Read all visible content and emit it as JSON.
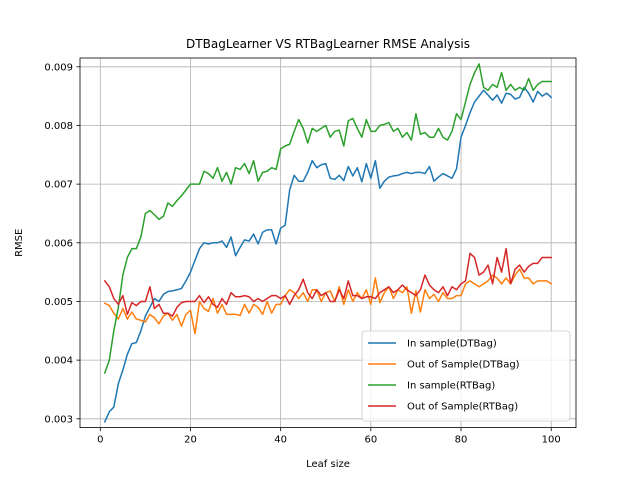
{
  "chart_data": {
    "type": "line",
    "title": "DTBagLearner VS RTBagLearner RMSE Analysis",
    "xlabel": "Leaf size",
    "ylabel": "RMSE",
    "xlim": [
      -4.5,
      105.5
    ],
    "ylim": [
      0.00285,
      0.00915
    ],
    "xticks": [
      0,
      20,
      40,
      60,
      80,
      100
    ],
    "yticks": [
      0.003,
      0.004,
      0.005,
      0.006,
      0.007,
      0.008,
      0.009
    ],
    "ytick_labels": [
      "0.003",
      "0.004",
      "0.005",
      "0.006",
      "0.007",
      "0.008",
      "0.009"
    ],
    "grid": true,
    "legend_position": "lower-right",
    "x_start": 1,
    "x_end": 100,
    "series": [
      {
        "name": "In sample(DTBag)",
        "color": "#1f77b4",
        "values": [
          0.00295,
          0.00312,
          0.0032,
          0.0036,
          0.00383,
          0.0041,
          0.00428,
          0.0043,
          0.0045,
          0.00475,
          0.0049,
          0.00505,
          0.005,
          0.00512,
          0.00517,
          0.00518,
          0.0052,
          0.00522,
          0.00535,
          0.0055,
          0.0057,
          0.0059,
          0.006,
          0.00598,
          0.006,
          0.006,
          0.00603,
          0.00592,
          0.0061,
          0.00578,
          0.00592,
          0.00605,
          0.00603,
          0.00615,
          0.00598,
          0.00618,
          0.00622,
          0.00622,
          0.00598,
          0.00625,
          0.0063,
          0.0069,
          0.00715,
          0.00705,
          0.00705,
          0.0072,
          0.0074,
          0.00728,
          0.00733,
          0.00735,
          0.0071,
          0.00708,
          0.00715,
          0.00706,
          0.0073,
          0.00714,
          0.00728,
          0.00704,
          0.00735,
          0.0071,
          0.0074,
          0.00693,
          0.00705,
          0.00712,
          0.00714,
          0.00715,
          0.00718,
          0.0072,
          0.00718,
          0.0072,
          0.0072,
          0.00718,
          0.0073,
          0.00705,
          0.00712,
          0.00718,
          0.00714,
          0.0071,
          0.00726,
          0.0078,
          0.008,
          0.00822,
          0.0084,
          0.0085,
          0.0086,
          0.00852,
          0.00843,
          0.00852,
          0.00838,
          0.00855,
          0.00853,
          0.00845,
          0.00848,
          0.00865,
          0.00855,
          0.0084,
          0.00858,
          0.0085,
          0.00855,
          0.00848
        ]
      },
      {
        "name": "Out of Sample(DTBag)",
        "color": "#ff7f0e",
        "values": [
          0.00497,
          0.00493,
          0.0048,
          0.0047,
          0.00488,
          0.0047,
          0.00482,
          0.0047,
          0.00468,
          0.00465,
          0.00478,
          0.00472,
          0.00462,
          0.00475,
          0.0048,
          0.00468,
          0.00478,
          0.00458,
          0.00478,
          0.00485,
          0.00445,
          0.005,
          0.00488,
          0.00483,
          0.00505,
          0.0048,
          0.00495,
          0.00478,
          0.00478,
          0.00478,
          0.00476,
          0.00495,
          0.0048,
          0.00495,
          0.0049,
          0.00478,
          0.005,
          0.0048,
          0.00495,
          0.00495,
          0.0051,
          0.0052,
          0.00515,
          0.00505,
          0.00515,
          0.005,
          0.0052,
          0.0052,
          0.005,
          0.00515,
          0.00518,
          0.005,
          0.00525,
          0.00495,
          0.0052,
          0.005,
          0.00515,
          0.00505,
          0.0052,
          0.00495,
          0.0054,
          0.00498,
          0.00515,
          0.00525,
          0.00505,
          0.0052,
          0.00515,
          0.00525,
          0.0048,
          0.00518,
          0.00482,
          0.0052,
          0.00505,
          0.00512,
          0.005,
          0.00515,
          0.00505,
          0.00505,
          0.0051,
          0.0051,
          0.0053,
          0.00535,
          0.0053,
          0.00525,
          0.0053,
          0.00535,
          0.00545,
          0.0054,
          0.0053,
          0.0054,
          0.0053,
          0.00545,
          0.00555,
          0.0054,
          0.0054,
          0.0053,
          0.00535,
          0.00535,
          0.00535,
          0.0053
        ]
      },
      {
        "name": "In sample(RTBag)",
        "color": "#2ca02c",
        "values": [
          0.00378,
          0.004,
          0.0045,
          0.0049,
          0.00545,
          0.00575,
          0.0059,
          0.0059,
          0.0061,
          0.0065,
          0.00655,
          0.00648,
          0.0064,
          0.00645,
          0.00668,
          0.00662,
          0.00672,
          0.0068,
          0.0069,
          0.007,
          0.007,
          0.007,
          0.00722,
          0.00718,
          0.0071,
          0.00728,
          0.00705,
          0.0072,
          0.007,
          0.00728,
          0.00725,
          0.00735,
          0.00718,
          0.0074,
          0.00705,
          0.0072,
          0.00722,
          0.00728,
          0.00725,
          0.0076,
          0.00765,
          0.00768,
          0.0079,
          0.0081,
          0.00795,
          0.0077,
          0.00795,
          0.0079,
          0.00795,
          0.008,
          0.0078,
          0.0079,
          0.00792,
          0.00765,
          0.00808,
          0.00812,
          0.00795,
          0.0078,
          0.0081,
          0.0079,
          0.0079,
          0.008,
          0.00802,
          0.00805,
          0.0079,
          0.00795,
          0.0078,
          0.00788,
          0.00775,
          0.0082,
          0.00785,
          0.00788,
          0.0078,
          0.0078,
          0.00795,
          0.0078,
          0.00775,
          0.0079,
          0.0082,
          0.0081,
          0.0084,
          0.0087,
          0.0089,
          0.00905,
          0.00865,
          0.0086,
          0.0087,
          0.00865,
          0.0089,
          0.0086,
          0.0087,
          0.0086,
          0.00865,
          0.0086,
          0.0088,
          0.0086,
          0.0087,
          0.00875,
          0.00875,
          0.00875
        ]
      },
      {
        "name": "Out of Sample(RTBag)",
        "color": "#d62728",
        "values": [
          0.00535,
          0.00525,
          0.00505,
          0.00495,
          0.0051,
          0.00478,
          0.00498,
          0.00493,
          0.005,
          0.005,
          0.00525,
          0.00488,
          0.00495,
          0.0048,
          0.0048,
          0.00475,
          0.0049,
          0.00498,
          0.005,
          0.005,
          0.005,
          0.0051,
          0.00498,
          0.00508,
          0.00495,
          0.0049,
          0.00505,
          0.00495,
          0.00515,
          0.00508,
          0.00508,
          0.0051,
          0.00508,
          0.005,
          0.00505,
          0.005,
          0.00505,
          0.0051,
          0.0051,
          0.00505,
          0.0051,
          0.00495,
          0.0051,
          0.0052,
          0.00538,
          0.00515,
          0.00505,
          0.0052,
          0.0051,
          0.00515,
          0.005,
          0.005,
          0.0052,
          0.00505,
          0.00535,
          0.0051,
          0.0051,
          0.00505,
          0.00508,
          0.00508,
          0.00505,
          0.00515,
          0.0052,
          0.00525,
          0.00515,
          0.0052,
          0.00528,
          0.0052,
          0.00515,
          0.0051,
          0.0052,
          0.00545,
          0.00528,
          0.0052,
          0.00515,
          0.00525,
          0.0051,
          0.00525,
          0.0052,
          0.0053,
          0.00535,
          0.00582,
          0.00575,
          0.00545,
          0.0055,
          0.00562,
          0.0053,
          0.00575,
          0.0055,
          0.0059,
          0.0053,
          0.00555,
          0.00562,
          0.0055,
          0.0056,
          0.00565,
          0.00565,
          0.00575,
          0.00575,
          0.00575
        ]
      }
    ]
  }
}
